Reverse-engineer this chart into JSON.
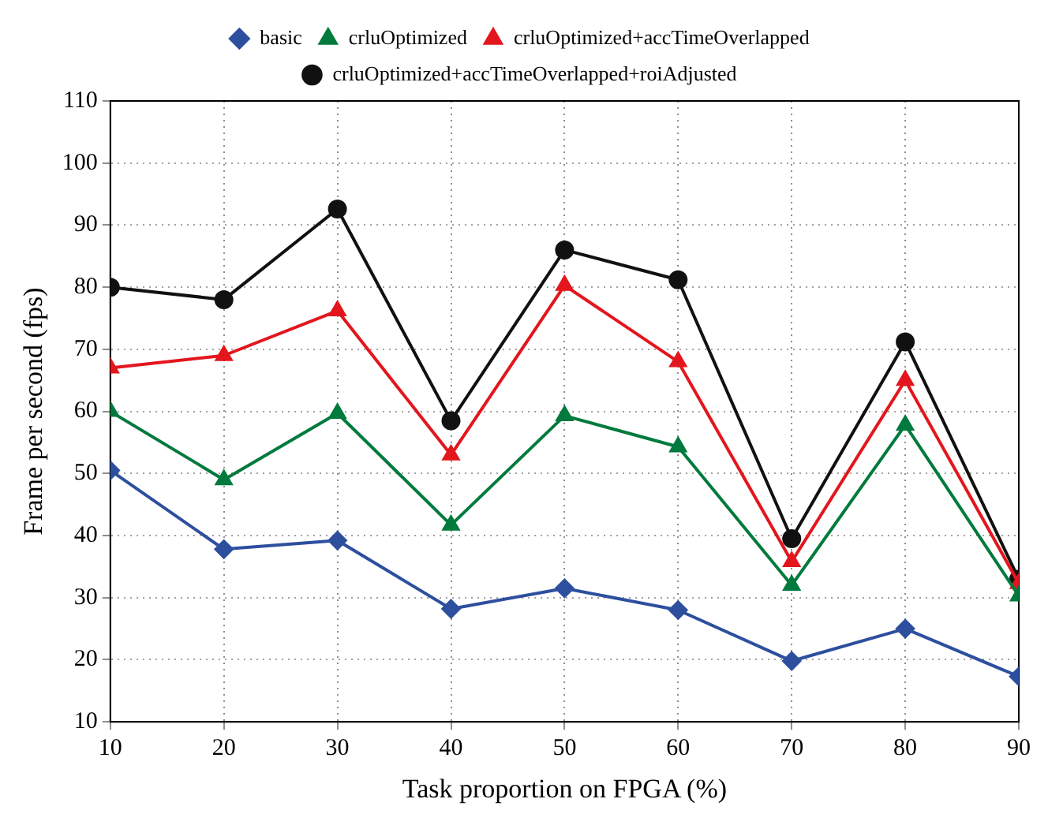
{
  "chart_data": {
    "type": "line",
    "xlabel": "Task proportion on FPGA (%)",
    "ylabel": "Frame per second (fps)",
    "x": [
      10,
      20,
      30,
      40,
      50,
      60,
      70,
      80,
      90
    ],
    "xlim": [
      10,
      90
    ],
    "xticks": [
      10,
      20,
      30,
      40,
      50,
      60,
      70,
      80,
      90
    ],
    "ylim": [
      10,
      110
    ],
    "yticks": [
      10,
      20,
      30,
      40,
      50,
      60,
      70,
      80,
      90,
      100,
      110
    ],
    "grid": true,
    "legend": "top",
    "line_style": "solid",
    "series": [
      {
        "name": "basic",
        "color": "#2d4f9e",
        "marker": "diamond",
        "values": [
          50.5,
          37.8,
          39.2,
          28.2,
          31.5,
          28,
          19.8,
          25,
          17.3
        ]
      },
      {
        "name": "crluOptimized",
        "color": "#007a3d",
        "marker": "triangle",
        "values": [
          60,
          49,
          59.7,
          41.7,
          59.3,
          54.3,
          32,
          57.8,
          30.3
        ]
      },
      {
        "name": "crluOptimized+accTimeOverlapped",
        "color": "#e3161e",
        "marker": "triangle",
        "values": [
          67,
          69,
          76.2,
          53,
          80.3,
          68,
          35.8,
          65,
          32.3
        ]
      },
      {
        "name": "crluOptimized+accTimeOverlapped+roiAdjusted",
        "color": "#111111",
        "marker": "circle",
        "values": [
          80,
          78,
          92.6,
          58.5,
          86,
          81.2,
          39.5,
          71.2,
          33
        ]
      }
    ]
  }
}
